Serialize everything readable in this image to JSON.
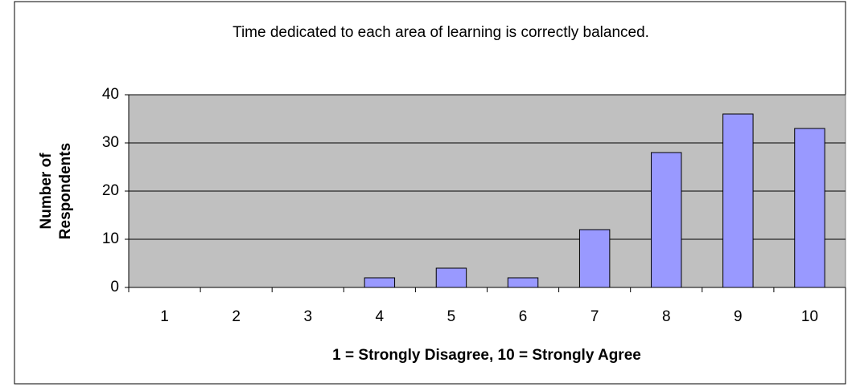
{
  "chart_data": {
    "type": "bar",
    "title": "Time dedicated to each area of learning is correctly balanced.",
    "x_label": "1 = Strongly Disagree, 10 = Strongly Agree",
    "y_label": "Number of Respondents",
    "categories": [
      "1",
      "2",
      "3",
      "4",
      "5",
      "6",
      "7",
      "8",
      "9",
      "10"
    ],
    "values": [
      0,
      0,
      0,
      2,
      4,
      2,
      12,
      28,
      36,
      33
    ],
    "color": "#9999ff",
    "plot_background": "#c0c0c0",
    "ylim": [
      0,
      40
    ],
    "yticks": [
      0,
      10,
      20,
      30,
      40
    ],
    "grid": true
  }
}
